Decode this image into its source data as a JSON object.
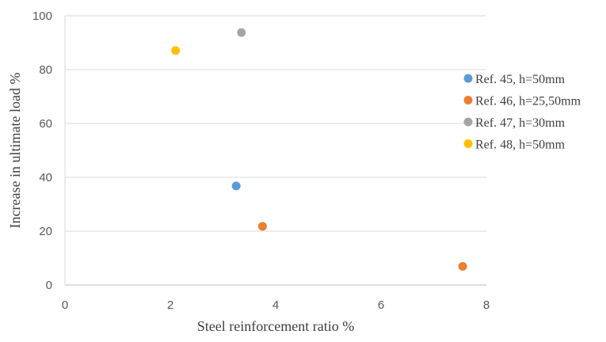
{
  "chart_data": {
    "type": "scatter",
    "xlabel": "Steel reinforcement ratio %",
    "ylabel": "Increase in ultimate load %",
    "xlim": [
      0,
      8
    ],
    "ylim": [
      0,
      100
    ],
    "x_ticks": [
      "0",
      "2",
      "4",
      "6",
      "8"
    ],
    "y_ticks": [
      "0",
      "20",
      "40",
      "60",
      "80",
      "100"
    ],
    "grid": "horizontal",
    "legend_position": "right",
    "series": [
      {
        "name": "Ref. 45, h=50mm",
        "color": "#5B9BD5",
        "points": [
          {
            "x": 3.25,
            "y": 36.8
          }
        ]
      },
      {
        "name": "Ref. 46, h=25,50mm",
        "color": "#ED7D31",
        "points": [
          {
            "x": 3.75,
            "y": 21.8
          },
          {
            "x": 7.55,
            "y": 6.9
          }
        ]
      },
      {
        "name": "Ref. 47, h=30mm",
        "color": "#A5A5A5",
        "points": [
          {
            "x": 3.35,
            "y": 93.8
          }
        ]
      },
      {
        "name": "Ref. 48, h=50mm",
        "color": "#FFC000",
        "points": [
          {
            "x": 2.1,
            "y": 87.1
          }
        ]
      }
    ]
  }
}
